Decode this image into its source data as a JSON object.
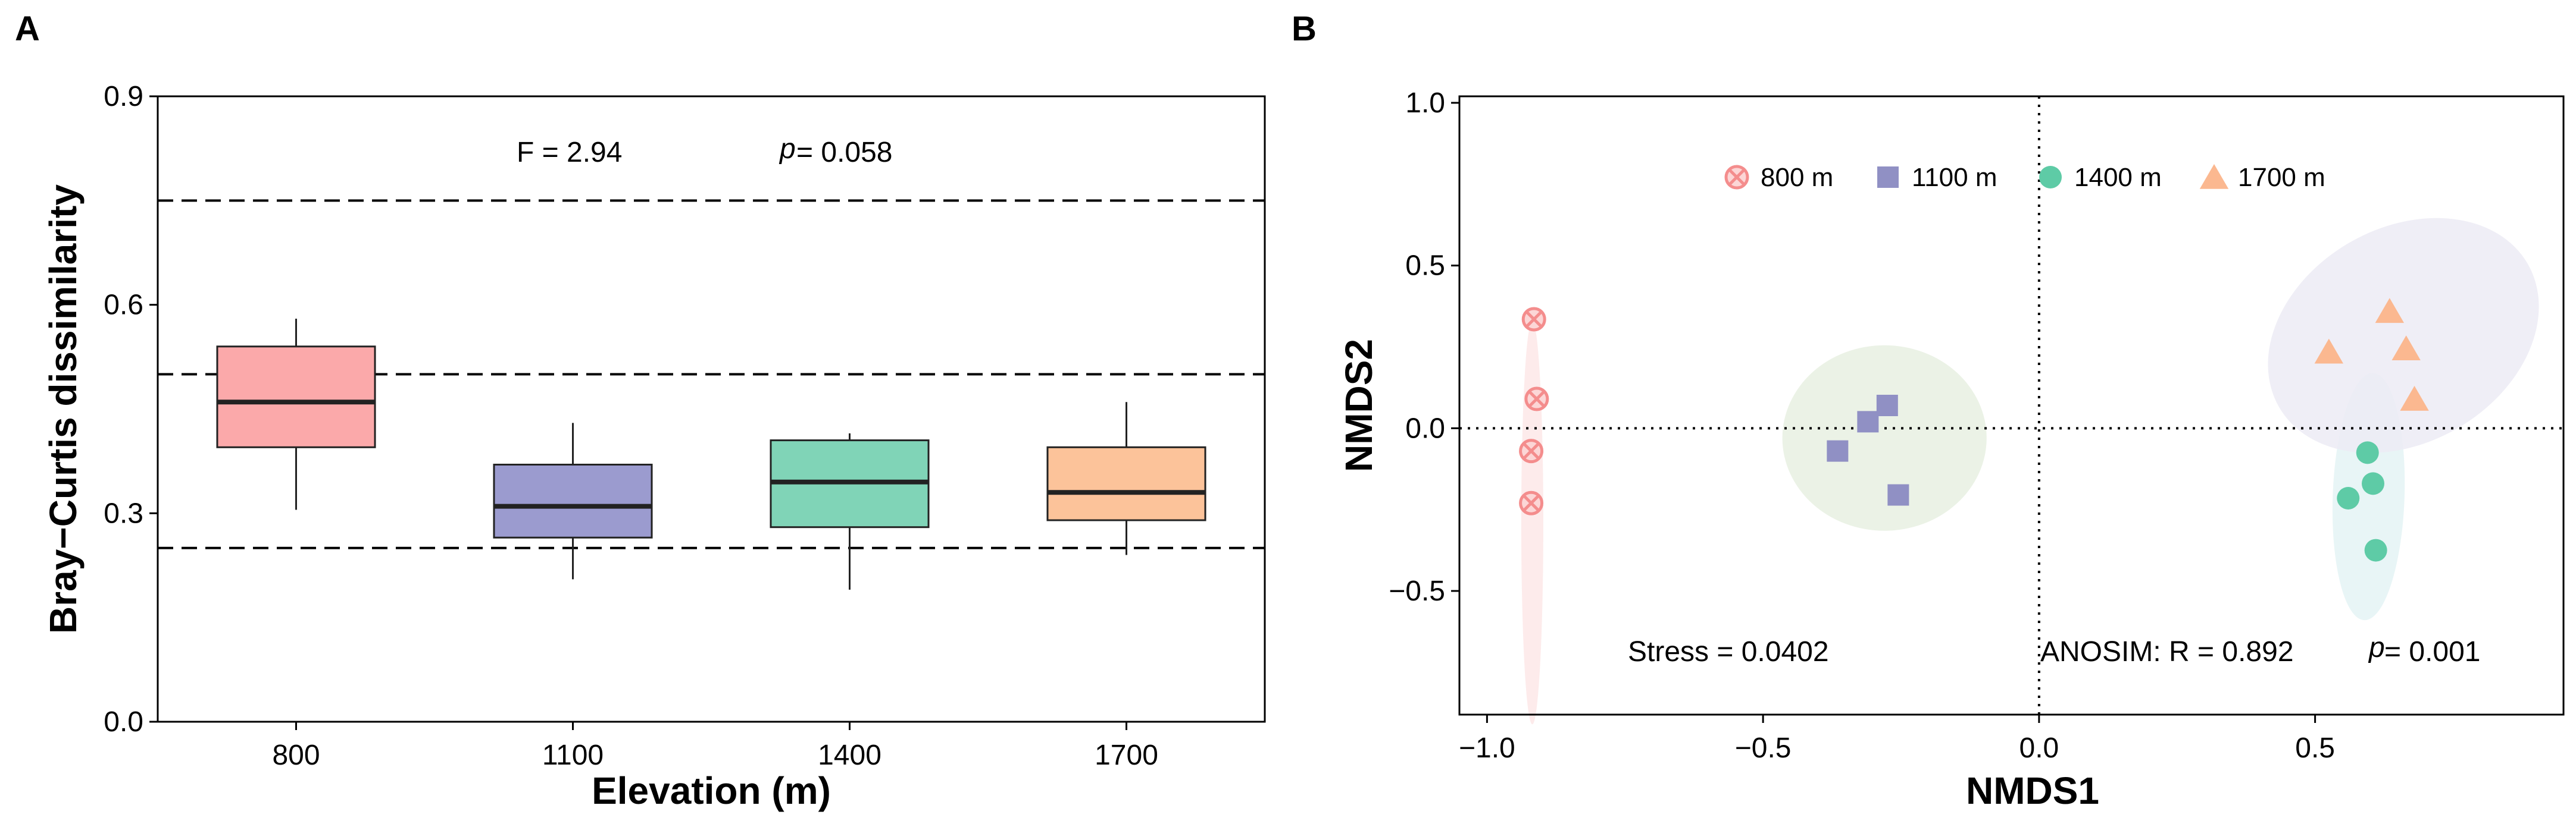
{
  "panels": {
    "a": "A",
    "b": "B"
  },
  "chart_data": [
    {
      "type": "box",
      "xlabel": "Elevation (m)",
      "ylabel": "Bray−Curtis dissimilarity",
      "ylim": [
        0,
        0.9
      ],
      "yticks": [
        0.0,
        0.3,
        0.6,
        0.9
      ],
      "ytick_labels": [
        "0.0",
        "0.3",
        "0.6",
        "0.9"
      ],
      "reference_lines": [
        0.25,
        0.5,
        0.75
      ],
      "categories": [
        "800",
        "1100",
        "1400",
        "1700"
      ],
      "boxes": [
        {
          "name": "800",
          "color": "#fba9aa",
          "min": 0.305,
          "q1": 0.395,
          "median": 0.46,
          "q3": 0.54,
          "max": 0.58
        },
        {
          "name": "1100",
          "color": "#9b9bcf",
          "min": 0.205,
          "q1": 0.265,
          "median": 0.31,
          "q3": 0.37,
          "max": 0.43
        },
        {
          "name": "1400",
          "color": "#80d4b7",
          "min": 0.19,
          "q1": 0.28,
          "median": 0.345,
          "q3": 0.405,
          "max": 0.415
        },
        {
          "name": "1700",
          "color": "#fcc39a",
          "min": 0.24,
          "q1": 0.29,
          "median": 0.33,
          "q3": 0.395,
          "max": 0.46
        }
      ],
      "annotations": {
        "f_stat": "F = 2.94",
        "p_label": "p",
        "p_value": "= 0.058"
      }
    },
    {
      "type": "scatter",
      "xlabel": "NMDS1",
      "ylabel": "NMDS2",
      "xlim": [
        -1.05,
        0.95
      ],
      "ylim": [
        -0.88,
        1.02
      ],
      "xticks": [
        -1.0,
        -0.5,
        0.0,
        0.5
      ],
      "xtick_labels": [
        "−1.0",
        "−0.5",
        "0.0",
        "0.5"
      ],
      "yticks": [
        -0.5,
        0.0,
        0.5,
        1.0
      ],
      "ytick_labels": [
        "−0.5",
        "0.0",
        "0.5",
        "1.0"
      ],
      "legend_position": "top",
      "series": [
        {
          "name": "800 m",
          "marker": "circle-x",
          "color": "#f48d8d",
          "fill": "#fcd6d6",
          "points": [
            [
              -0.915,
              0.335
            ],
            [
              -0.91,
              0.09
            ],
            [
              -0.92,
              -0.07
            ],
            [
              -0.92,
              -0.23
            ]
          ],
          "ellipse": {
            "cx": -0.918,
            "cy": -0.29,
            "rx": 0.02,
            "ry": 0.62,
            "angle": 90,
            "fill": "#fde8e8"
          }
        },
        {
          "name": "1100 m",
          "marker": "square",
          "color": "#9090c4",
          "points": [
            [
              -0.365,
              -0.07
            ],
            [
              -0.31,
              0.02
            ],
            [
              -0.275,
              0.07
            ],
            [
              -0.255,
              -0.205
            ]
          ],
          "ellipse": {
            "cx": -0.28,
            "cy": -0.03,
            "rx": 0.185,
            "ry": 0.285,
            "angle": 90,
            "fill": "#e8f0e2"
          }
        },
        {
          "name": "1400 m",
          "marker": "circle",
          "color": "#5ecba6",
          "points": [
            [
              0.595,
              -0.075
            ],
            [
              0.605,
              -0.17
            ],
            [
              0.56,
              -0.215
            ],
            [
              0.61,
              -0.375
            ]
          ],
          "ellipse": {
            "cx": 0.597,
            "cy": -0.21,
            "rx": 0.065,
            "ry": 0.38,
            "angle": 92,
            "fill": "#e4f3f5"
          }
        },
        {
          "name": "1700 m",
          "marker": "triangle",
          "color": "#fbb890",
          "points": [
            [
              0.525,
              0.235
            ],
            [
              0.635,
              0.36
            ],
            [
              0.665,
              0.245
            ],
            [
              0.68,
              0.09
            ]
          ],
          "ellipse": {
            "cx": 0.66,
            "cy": 0.285,
            "rx": 0.26,
            "ry": 0.33,
            "angle": 60,
            "fill": "#ecebf5"
          }
        }
      ],
      "annotations": {
        "stress": "Stress =  0.0402",
        "anosim": "ANOSIM: R = 0.892",
        "p_label": "p",
        "p_value": "= 0.001"
      }
    }
  ]
}
